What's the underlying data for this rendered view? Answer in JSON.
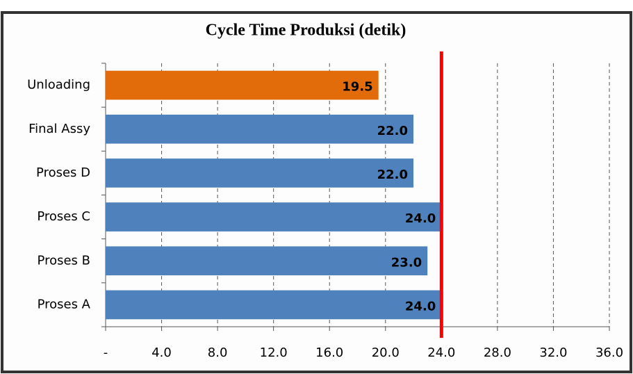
{
  "chart_data": {
    "type": "hbar",
    "title": "Cycle Time Produksi  (detik)",
    "categories": [
      "Unloading",
      "Final Assy",
      "Proses D",
      "Proses C",
      "Proses B",
      "Proses A"
    ],
    "values": [
      19.5,
      22,
      22,
      24,
      23,
      24
    ],
    "value_labels": [
      "19.5",
      "22.0",
      "22.0",
      "24.0",
      "23.0",
      "24.0"
    ],
    "colors": [
      "#e36c0a",
      "#4f81bd",
      "#4f81bd",
      "#4f81bd",
      "#4f81bd",
      "#4f81bd"
    ],
    "xlim": [
      0,
      36
    ],
    "xticks": [
      {
        "value": 0,
        "label": "-"
      },
      {
        "value": 4,
        "label": "4.0"
      },
      {
        "value": 8,
        "label": "8.0"
      },
      {
        "value": 12,
        "label": "12.0"
      },
      {
        "value": 16,
        "label": "16.0"
      },
      {
        "value": 20,
        "label": "20.0"
      },
      {
        "value": 24,
        "label": "24.0"
      },
      {
        "value": 28,
        "label": "28.0"
      },
      {
        "value": 32,
        "label": "32.0"
      },
      {
        "value": 36,
        "label": "36.0"
      }
    ],
    "grid": true,
    "reference_line": {
      "value": 24,
      "color": "#ff0000"
    }
  }
}
